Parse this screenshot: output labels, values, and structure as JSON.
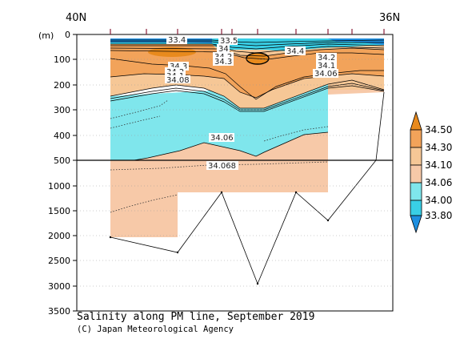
{
  "chart_data": {
    "type": "contour-section",
    "title": "Salinity along PM line, September 2019",
    "credit": "(C) Japan Meteorological Agency",
    "top_labels": {
      "left": "40N",
      "right": "36N"
    },
    "ylabel": "(m)",
    "y_ticks_upper": [
      0,
      100,
      200,
      300,
      400,
      500
    ],
    "y_ticks_lower": [
      1000,
      1500,
      2000,
      2500,
      3000,
      3500
    ],
    "ylim": [
      0,
      3500
    ],
    "colorbar": {
      "levels": [
        "34.50",
        "34.30",
        "34.10",
        "34.06",
        "34.00",
        "33.80"
      ],
      "bands": [
        {
          "range": ">34.50",
          "color": "#e88a1d"
        },
        {
          "range": "34.30-34.50",
          "color": "#f2a35a"
        },
        {
          "range": "34.10-34.30",
          "color": "#f6c796"
        },
        {
          "range": "34.06-34.10",
          "color": "#f7c9a8"
        },
        {
          "range": "34.00-34.06",
          "color": "#7fe6ec"
        },
        {
          "range": "33.80-34.00",
          "color": "#39cfe6"
        },
        {
          "range": "<33.80",
          "color": "#1e8fe0"
        }
      ]
    },
    "contour_labels": [
      "33.4",
      "33.5",
      "34",
      "34.2",
      "34.3",
      "34.4",
      "34.2",
      "34.1",
      "34.3",
      "34.2",
      "34.1",
      "34.08",
      "34.06",
      "34.06",
      "34.068"
    ],
    "stations_x_frac": [
      0.0,
      0.245,
      0.41,
      0.545,
      0.68,
      0.81,
      1.0
    ],
    "bottom_depth_m": [
      2050,
      2320,
      1150,
      2950,
      1150,
      1700,
      500,
      200
    ]
  }
}
